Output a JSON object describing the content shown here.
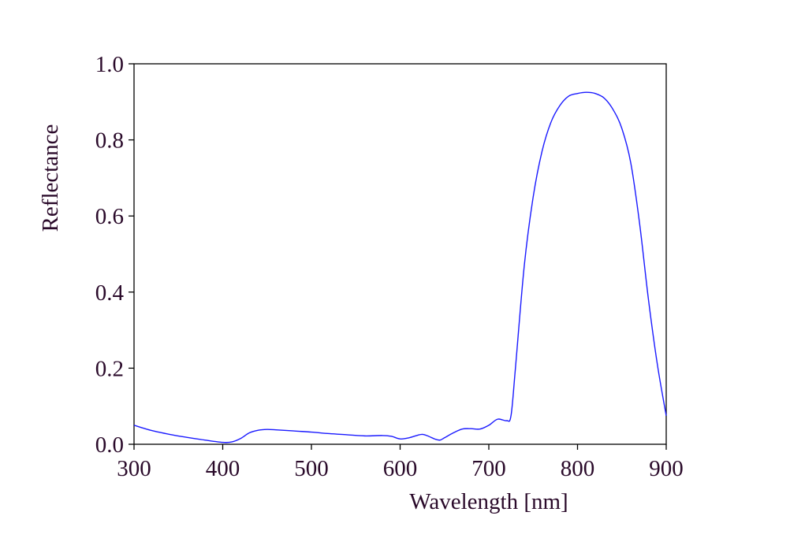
{
  "chart_data": {
    "type": "line",
    "xlabel": "Wavelength [nm]",
    "ylabel": "Reflectance",
    "xlim": [
      300,
      900
    ],
    "ylim": [
      0.0,
      1.0
    ],
    "x_ticks": [
      300,
      400,
      500,
      600,
      700,
      800,
      900
    ],
    "x_tick_labels": [
      "300",
      "400",
      "500",
      "600",
      "700",
      "800",
      "900"
    ],
    "y_ticks": [
      0.0,
      0.2,
      0.4,
      0.6,
      0.8,
      1.0
    ],
    "y_tick_labels": [
      "0.0",
      "0.2",
      "0.4",
      "0.6",
      "0.8",
      "1.0"
    ],
    "grid": false,
    "legend": "none",
    "line_color": "#1a1aff",
    "text_color": "#2a0a2a",
    "series": [
      {
        "x": [
          300,
          320,
          340,
          360,
          380,
          400,
          410,
          420,
          430,
          440,
          450,
          460,
          480,
          500,
          520,
          540,
          560,
          580,
          590,
          600,
          610,
          620,
          625,
          630,
          640,
          645,
          650,
          660,
          670,
          680,
          690,
          700,
          710,
          720,
          725,
          730,
          740,
          750,
          760,
          770,
          780,
          790,
          800,
          810,
          820,
          830,
          840,
          850,
          860,
          870,
          880,
          890,
          900
        ],
        "y": [
          0.05,
          0.036,
          0.026,
          0.018,
          0.011,
          0.005,
          0.006,
          0.015,
          0.03,
          0.037,
          0.039,
          0.038,
          0.035,
          0.032,
          0.028,
          0.025,
          0.022,
          0.023,
          0.021,
          0.014,
          0.017,
          0.024,
          0.026,
          0.023,
          0.013,
          0.011,
          0.017,
          0.03,
          0.04,
          0.041,
          0.04,
          0.05,
          0.066,
          0.062,
          0.075,
          0.2,
          0.47,
          0.65,
          0.77,
          0.846,
          0.89,
          0.915,
          0.922,
          0.925,
          0.922,
          0.91,
          0.88,
          0.83,
          0.74,
          0.58,
          0.38,
          0.21,
          0.075
        ]
      }
    ]
  }
}
